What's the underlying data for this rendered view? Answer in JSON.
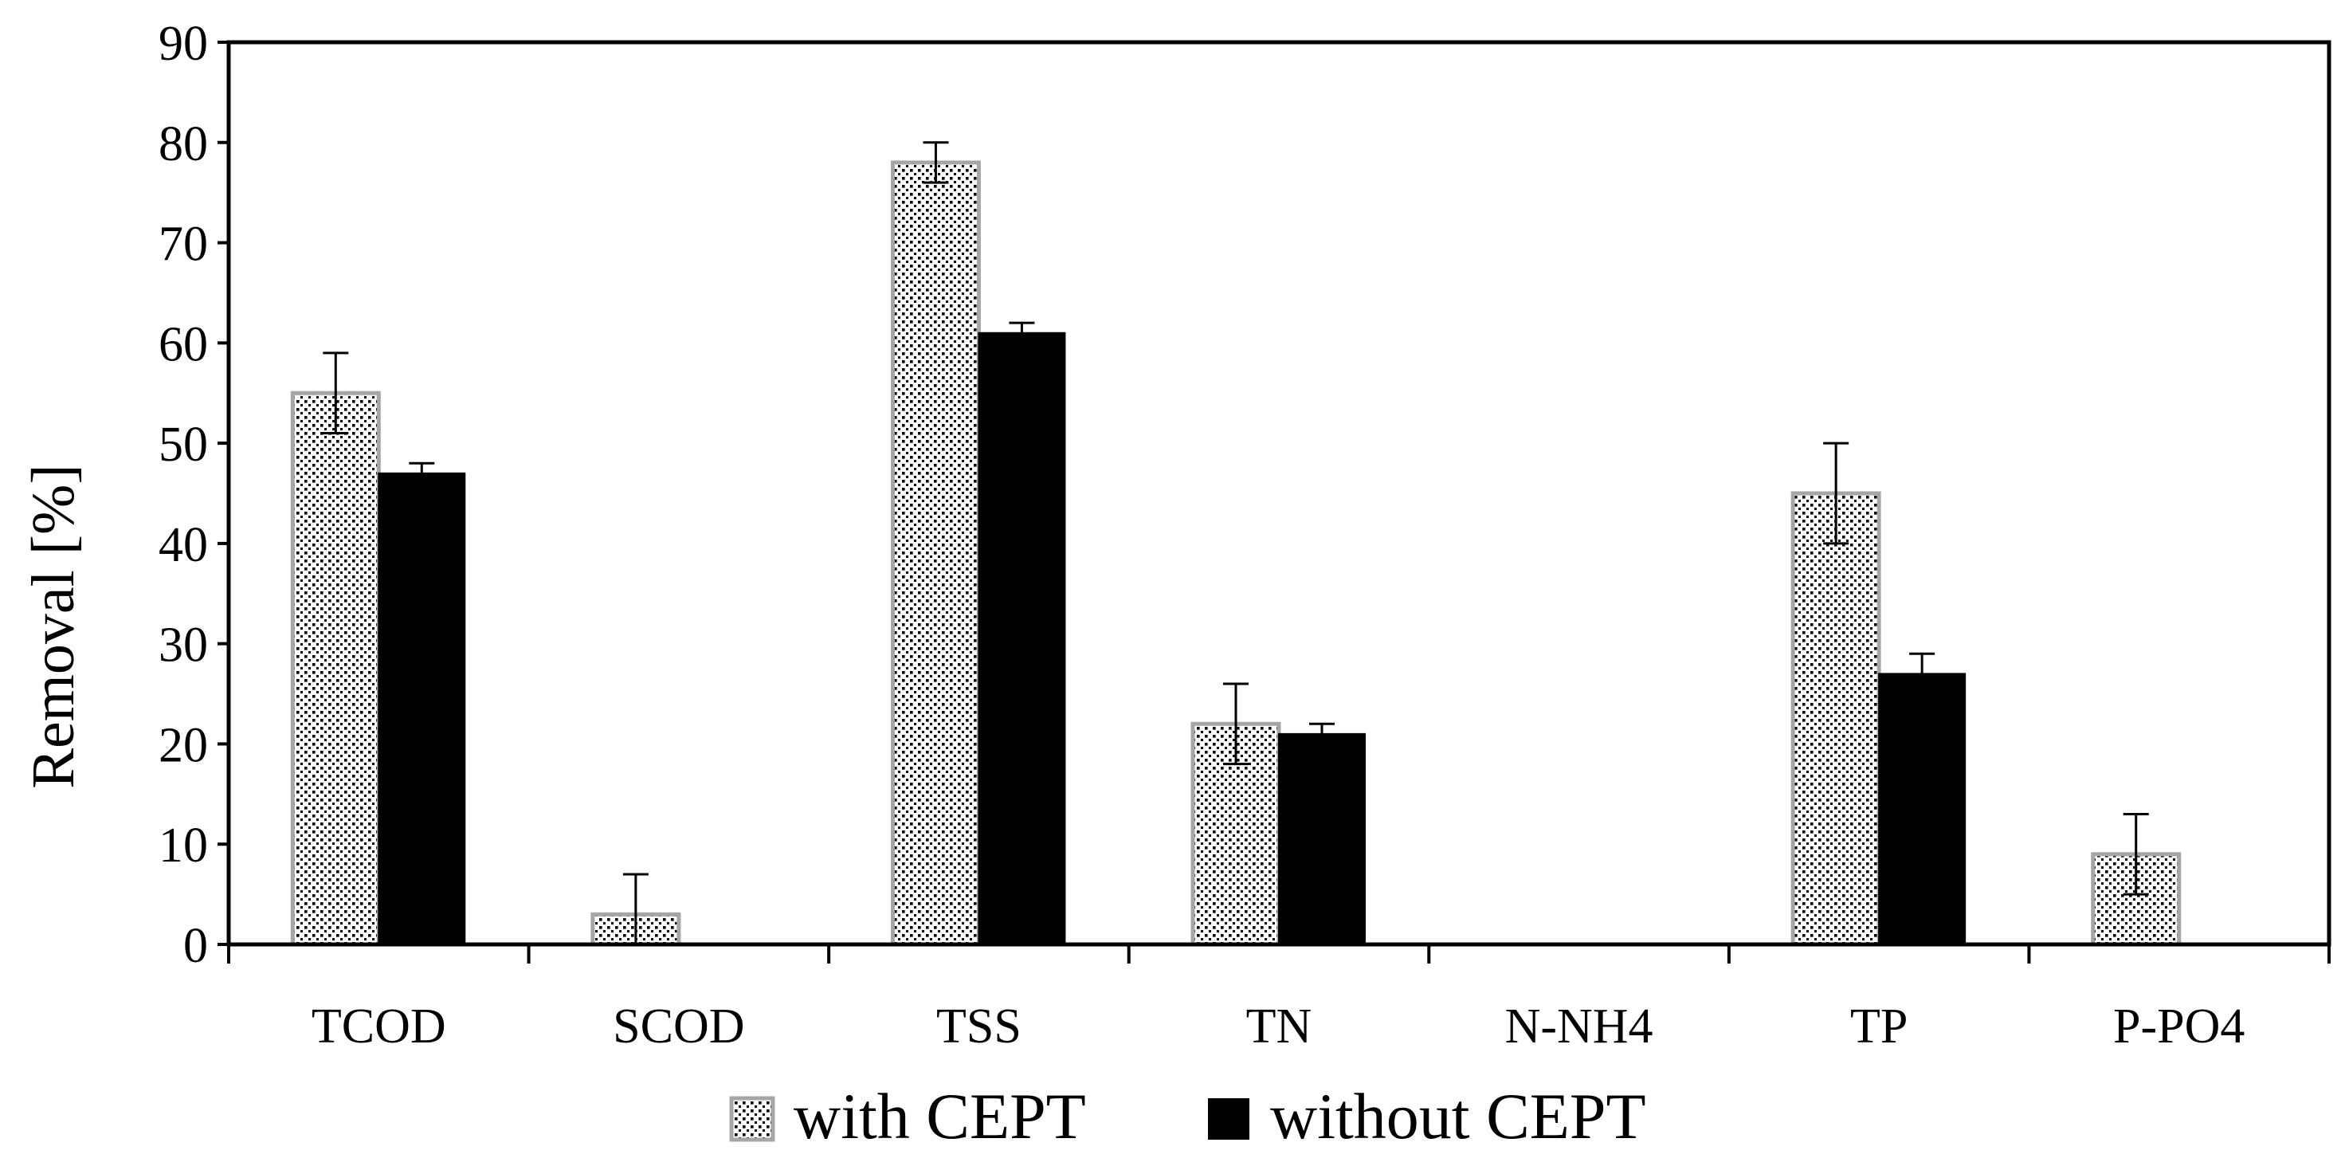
{
  "chart_data": {
    "type": "bar",
    "title": "",
    "xlabel": "",
    "ylabel": "Removal [%]",
    "ylim": [
      0,
      90
    ],
    "yticks": [
      0,
      10,
      20,
      30,
      40,
      50,
      60,
      70,
      80,
      90
    ],
    "grid": false,
    "legend_position": "bottom-center",
    "categories": [
      "TCOD",
      "SCOD",
      "TSS",
      "TN",
      "N-NH4",
      "TP",
      "P-PO4"
    ],
    "series": [
      {
        "name": "with CEPT",
        "pattern": "dotted",
        "fill": "#ffffff",
        "dot_color": "#000000",
        "stroke": "#a6a6a6",
        "values": [
          55,
          3,
          78,
          22,
          0,
          45,
          9
        ],
        "errors": [
          4,
          4,
          2,
          4,
          0,
          5,
          4
        ]
      },
      {
        "name": "without CEPT",
        "pattern": "solid",
        "fill": "#000000",
        "stroke": "#000000",
        "values": [
          47,
          0,
          61,
          21,
          0,
          27,
          0
        ],
        "errors": [
          1,
          0,
          1,
          1,
          0,
          2,
          0
        ]
      }
    ]
  }
}
